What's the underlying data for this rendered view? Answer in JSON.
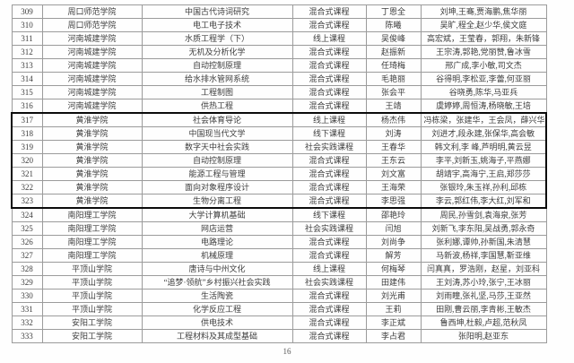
{
  "page_number": "16",
  "colors": {
    "grid_border": "#9b9b9b",
    "highlight_border": "#0a0a0a",
    "text": "#3d3d3d"
  },
  "table": {
    "highlight_range": {
      "from": "317",
      "to": "323"
    },
    "rows": [
      {
        "no": "309",
        "university": "周口师范学院",
        "course": "中国古代诗词研究",
        "type": "混合式课程",
        "leader": "丁恩全",
        "team": "刘坤,王骞,贾海鹏,焦华丽"
      },
      {
        "no": "310",
        "university": "周口师范学院",
        "course": "电工电子技术",
        "type": "混合式课程",
        "leader": "陈曦",
        "team": "吴旷,程全,赵少华,侯文庭"
      },
      {
        "no": "311",
        "university": "河南城建学院",
        "course": "水质工程学（下）",
        "type": "线上课程",
        "leader": "吴俊峰",
        "team": "高宏斌，王莹春，郭翔，朱新锋"
      },
      {
        "no": "312",
        "university": "河南城建学院",
        "course": "无机及分析化学",
        "type": "混合式课程",
        "leader": "赵振新",
        "team": "王宗涛,郭艳,党丽赞,鲁冰雪"
      },
      {
        "no": "313",
        "university": "河南城建学院",
        "course": "自动控制原理",
        "type": "混合式课程",
        "leader": "任琦梅",
        "team": "邢广成,李小敏,司文杰"
      },
      {
        "no": "314",
        "university": "河南城建学院",
        "course": "给水排水管网系统",
        "type": "混合式课程",
        "leader": "毛艳丽",
        "team": "谷得明,李松亚,李蕾,何亚丽"
      },
      {
        "no": "315",
        "university": "河南城建学院",
        "course": "工程制图",
        "type": "混合式课程",
        "leader": "张会平",
        "team": "谷晓勇,陈华,马亚兵"
      },
      {
        "no": "316",
        "university": "河南城建学院",
        "course": "供热工程",
        "type": "混合式课程",
        "leader": "王靖",
        "team": "虞婷婷,周恒涛,杨晓敏,王培"
      },
      {
        "no": "317",
        "university": "黄淮学院",
        "course": "社会体育导论",
        "type": "线上课程",
        "leader": "杨杰伟",
        "team": "冯栋梁，张建华，王会凤，薛兴华"
      },
      {
        "no": "318",
        "university": "黄淮学院",
        "course": "中国现当代文学",
        "type": "线下课程",
        "leader": "刘涛",
        "team": "刘进才,段永建,张保华,高会敏"
      },
      {
        "no": "319",
        "university": "黄淮学院",
        "course": "数字天中社会实践",
        "type": "社会实践课程",
        "leader": "王春华",
        "team": "韩文利,李 峰,芦明明,黄云昱"
      },
      {
        "no": "320",
        "university": "黄淮学院",
        "course": "自动控制原理",
        "type": "混合式课程",
        "leader": "王东云",
        "team": "李平,刘新玉,姚海子,平燕娜"
      },
      {
        "no": "321",
        "university": "黄淮学院",
        "course": "能源工程与管理",
        "type": "混合式课程",
        "leader": "刘文富",
        "team": "胡靖宇,高海宁,王启,郑莎莎"
      },
      {
        "no": "322",
        "university": "黄淮学院",
        "course": "面向对象程序设计",
        "type": "混合式课程",
        "leader": "王海荣",
        "team": "张银玲,朱玉祥,孙利,邱栋"
      },
      {
        "no": "323",
        "university": "黄淮学院",
        "course": "生物分离工程",
        "type": "混合式课程",
        "leader": "李思强",
        "team": "李云,郭红伟,李大红,刘军和"
      },
      {
        "no": "324",
        "university": "南阳理工学院",
        "course": "大学计算机基础",
        "type": "线下课程",
        "leader": "邵艳玲",
        "team": "周民,孙雪剑,袁海泉,张芳"
      },
      {
        "no": "325",
        "university": "南阳理工学院",
        "course": "网店运营",
        "type": "社会实践课程",
        "leader": "闫旭",
        "team": "刘新飞,李东阳,吴战勇,郭永奇"
      },
      {
        "no": "326",
        "university": "南阳理工学院",
        "course": "电路理论",
        "type": "混合式课程",
        "leader": "刘尚争",
        "team": "张利娜,谭帅,孙新国,朱清慧"
      },
      {
        "no": "327",
        "university": "南阳理工学院",
        "course": "机械原理",
        "type": "混合式课程",
        "leader": "解芳",
        "team": "马新波,杨祥,李国慧,靳亚维"
      },
      {
        "no": "328",
        "university": "平顶山学院",
        "course": "唐诗与中州文化",
        "type": "线上课程",
        "leader": "何梅琴",
        "team": "闫真真，罗浩刚，赵星，刘亚科"
      },
      {
        "no": "329",
        "university": "平顶山学院",
        "course": "“追梦·领航”乡村振兴社会实践",
        "type": "社会实践课程",
        "leader": "田建伟",
        "team": "王刘涛,苏小玲,张宁,王冰丽"
      },
      {
        "no": "330",
        "university": "平顶山学院",
        "course": "生活陶瓷",
        "type": "混合式课程",
        "leader": "刘光甫",
        "team": "刘雨瞳,张礼坚,马莎,王亚然"
      },
      {
        "no": "331",
        "university": "平顶山学院",
        "course": "化学反应工程",
        "type": "混合式课程",
        "leader": "王莉",
        "team": "田刚,曹云丽,李青彬,王敏杰"
      },
      {
        "no": "332",
        "university": "安阳工学院",
        "course": "供电技术",
        "type": "混合式课程",
        "leader": "李正斌",
        "team": "鲁西坤,杜毅,卢超,范秋凤"
      },
      {
        "no": "333",
        "university": "安阳工学院",
        "course": "工程材料及其成型基础",
        "type": "混合式课程",
        "leader": "李占君",
        "team": "张阳明,赵亚东"
      }
    ]
  }
}
